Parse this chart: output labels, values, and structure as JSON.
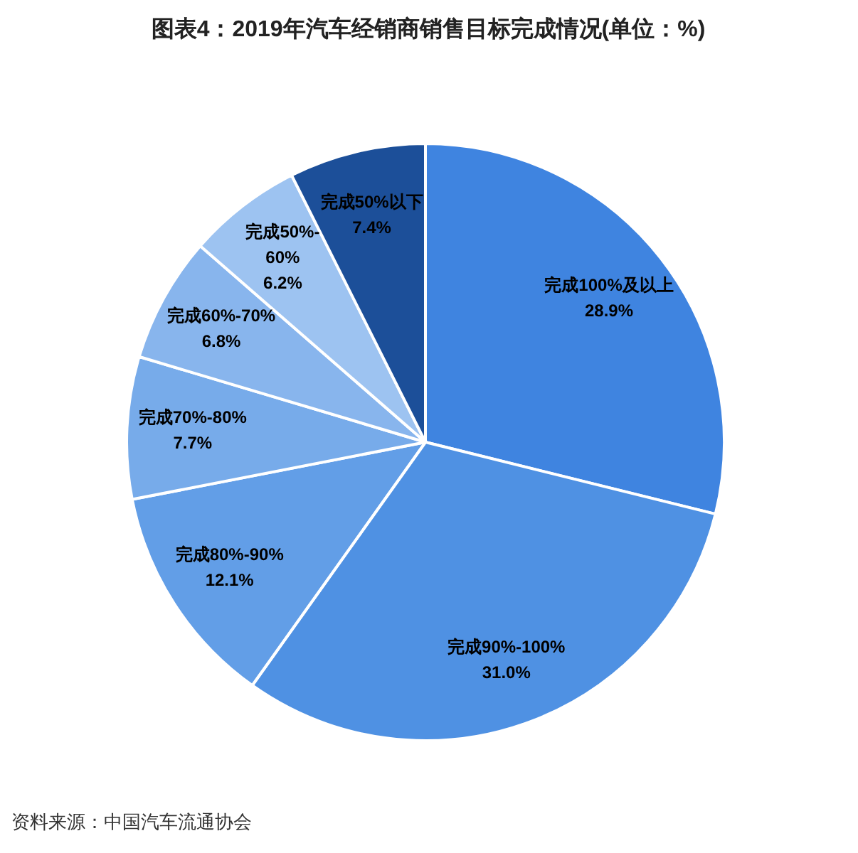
{
  "chart_data": {
    "type": "pie",
    "title": "图表4：2019年汽车经销商销售目标完成情况(单位：%)",
    "categories": [
      "完成100%及以上",
      "完成90%-100%",
      "完成80%-90%",
      "完成70%-80%",
      "完成60%-70%",
      "完成50%-60%",
      "完成50%以下"
    ],
    "values": [
      28.9,
      31.0,
      12.1,
      7.7,
      6.8,
      6.2,
      7.4
    ],
    "value_labels": [
      "28.9%",
      "31.0%",
      "12.1%",
      "7.7%",
      "6.8%",
      "6.2%",
      "7.4%"
    ],
    "colors": [
      "#3f84e0",
      "#4f91e3",
      "#629ee7",
      "#77abea",
      "#88b5ed",
      "#9dc3f1",
      "#1c4f99"
    ],
    "legend": false,
    "annotations": [
      "资料来源：中国汽车流通协会"
    ]
  }
}
